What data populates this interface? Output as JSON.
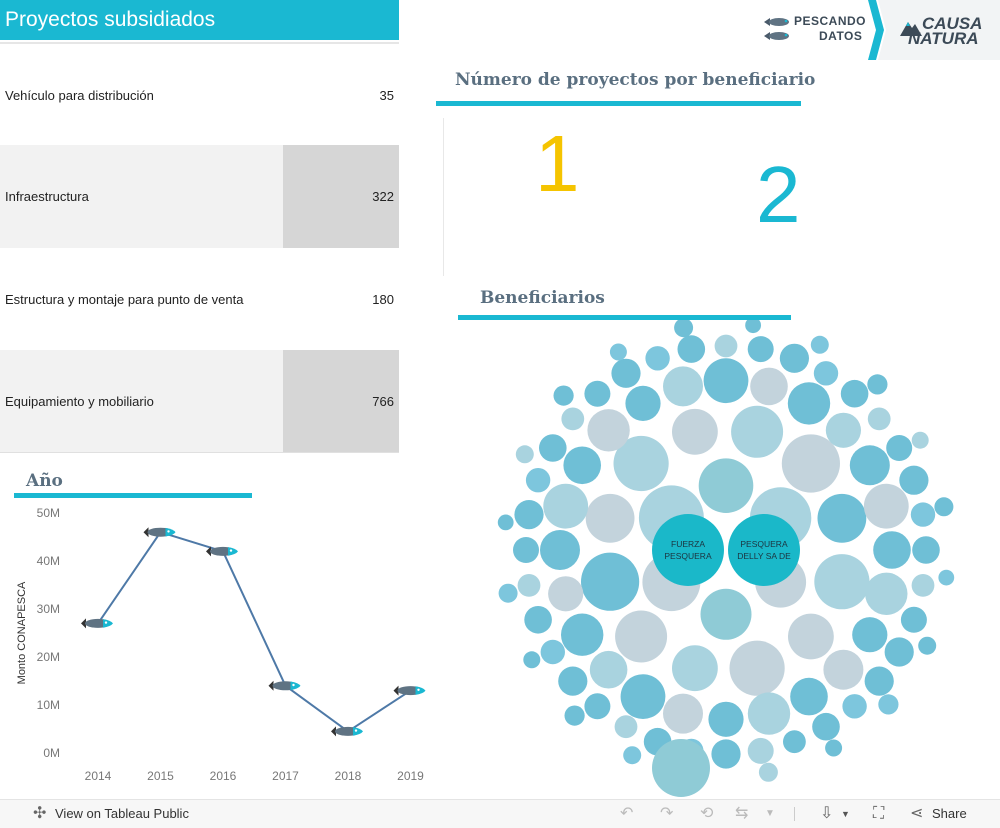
{
  "header": {
    "title": "Proyectos subsidiados",
    "logo_pescando_line1": "PESCANDO",
    "logo_pescando_line2": "DATOS",
    "logo_causa_line1": "CAUSA",
    "logo_causa_line2": "NATURA"
  },
  "projects_table": {
    "rows": [
      {
        "label": "Vehículo para distribución",
        "value": "35"
      },
      {
        "label": "Infraestructura",
        "value": "322"
      },
      {
        "label": "Estructura y montaje para punto de venta",
        "value": "180"
      },
      {
        "label": "Equipamiento y mobiliario",
        "value": "766"
      }
    ]
  },
  "beneficiary_count": {
    "title": "Número de proyectos por beneficiario",
    "values": [
      "1",
      "2"
    ],
    "colors": [
      "#f5c400",
      "#1ab8d2"
    ]
  },
  "beneficiarios": {
    "title": "Beneficiarios",
    "labeled_bubbles": [
      {
        "line1": "FUERZA",
        "line2": "PESQUERA"
      },
      {
        "line1": "PESQUERA",
        "line2": "DELLY SA DE"
      }
    ]
  },
  "year_section": {
    "title": "Año"
  },
  "chart_data": {
    "type": "line",
    "x": [
      "2014",
      "2015",
      "2016",
      "2017",
      "2018",
      "2019"
    ],
    "values": [
      27,
      46,
      42,
      14,
      4.5,
      13
    ],
    "ylabel": "Monto CONAPESCA",
    "yticks": [
      "0M",
      "10M",
      "20M",
      "30M",
      "40M",
      "50M"
    ],
    "ylim": [
      0,
      52
    ],
    "line_color": "#4e79a7",
    "marker": "fish-icon"
  },
  "footer": {
    "view_label": "View on Tableau Public",
    "share_label": "Share"
  }
}
